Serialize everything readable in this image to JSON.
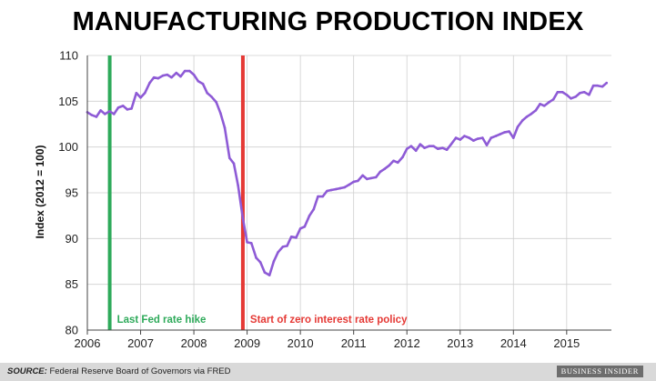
{
  "chart_data": {
    "type": "line",
    "title": "MANUFACTURING PRODUCTION INDEX",
    "ylabel": "Index (2012 = 100)",
    "xlabel": "",
    "ylim": [
      80,
      110
    ],
    "xlim": [
      2006.0,
      2015.84
    ],
    "yticks": [
      "80",
      "85",
      "90",
      "95",
      "100",
      "105",
      "110"
    ],
    "xticks": [
      "2006",
      "2007",
      "2008",
      "2009",
      "2010",
      "2011",
      "2012",
      "2013",
      "2014",
      "2015"
    ],
    "grid": true,
    "line_color": "#8e5bd6",
    "annotations": [
      {
        "label": "Last Fed rate hike",
        "x": 2006.42,
        "color": "#2eaa5a"
      },
      {
        "label": "Start of zero interest rate policy",
        "x": 2008.92,
        "color": "#e53935"
      }
    ],
    "series": [
      {
        "values": [
          [
            2006.0,
            103.8
          ],
          [
            2006.08,
            103.5
          ],
          [
            2006.17,
            103.3
          ],
          [
            2006.25,
            104.0
          ],
          [
            2006.33,
            103.6
          ],
          [
            2006.42,
            103.9
          ],
          [
            2006.5,
            103.6
          ],
          [
            2006.58,
            104.3
          ],
          [
            2006.67,
            104.5
          ],
          [
            2006.75,
            104.1
          ],
          [
            2006.83,
            104.2
          ],
          [
            2006.92,
            105.9
          ],
          [
            2007.0,
            105.4
          ],
          [
            2007.08,
            105.9
          ],
          [
            2007.17,
            107.0
          ],
          [
            2007.25,
            107.6
          ],
          [
            2007.33,
            107.5
          ],
          [
            2007.42,
            107.8
          ],
          [
            2007.5,
            107.9
          ],
          [
            2007.58,
            107.6
          ],
          [
            2007.67,
            108.1
          ],
          [
            2007.75,
            107.7
          ],
          [
            2007.83,
            108.3
          ],
          [
            2007.92,
            108.3
          ],
          [
            2008.0,
            107.9
          ],
          [
            2008.08,
            107.2
          ],
          [
            2008.17,
            106.9
          ],
          [
            2008.25,
            105.9
          ],
          [
            2008.33,
            105.5
          ],
          [
            2008.42,
            104.9
          ],
          [
            2008.5,
            103.7
          ],
          [
            2008.58,
            102.1
          ],
          [
            2008.67,
            98.8
          ],
          [
            2008.75,
            98.2
          ],
          [
            2008.83,
            95.8
          ],
          [
            2008.92,
            92.2
          ],
          [
            2009.0,
            89.6
          ],
          [
            2009.08,
            89.5
          ],
          [
            2009.17,
            87.9
          ],
          [
            2009.25,
            87.4
          ],
          [
            2009.33,
            86.3
          ],
          [
            2009.42,
            86.0
          ],
          [
            2009.5,
            87.5
          ],
          [
            2009.58,
            88.5
          ],
          [
            2009.67,
            89.1
          ],
          [
            2009.75,
            89.2
          ],
          [
            2009.83,
            90.2
          ],
          [
            2009.92,
            90.1
          ],
          [
            2010.0,
            91.1
          ],
          [
            2010.08,
            91.3
          ],
          [
            2010.17,
            92.5
          ],
          [
            2010.25,
            93.2
          ],
          [
            2010.33,
            94.6
          ],
          [
            2010.42,
            94.6
          ],
          [
            2010.5,
            95.2
          ],
          [
            2010.58,
            95.3
          ],
          [
            2010.67,
            95.4
          ],
          [
            2010.75,
            95.5
          ],
          [
            2010.83,
            95.6
          ],
          [
            2010.92,
            95.9
          ],
          [
            2011.0,
            96.2
          ],
          [
            2011.08,
            96.3
          ],
          [
            2011.17,
            96.9
          ],
          [
            2011.25,
            96.5
          ],
          [
            2011.33,
            96.6
          ],
          [
            2011.42,
            96.7
          ],
          [
            2011.5,
            97.3
          ],
          [
            2011.58,
            97.6
          ],
          [
            2011.67,
            98.0
          ],
          [
            2011.75,
            98.5
          ],
          [
            2011.83,
            98.3
          ],
          [
            2011.92,
            98.9
          ],
          [
            2012.0,
            99.8
          ],
          [
            2012.08,
            100.1
          ],
          [
            2012.17,
            99.6
          ],
          [
            2012.25,
            100.3
          ],
          [
            2012.33,
            99.9
          ],
          [
            2012.42,
            100.1
          ],
          [
            2012.5,
            100.1
          ],
          [
            2012.58,
            99.8
          ],
          [
            2012.67,
            99.9
          ],
          [
            2012.75,
            99.7
          ],
          [
            2012.83,
            100.3
          ],
          [
            2012.92,
            101.0
          ],
          [
            2013.0,
            100.8
          ],
          [
            2013.08,
            101.2
          ],
          [
            2013.17,
            101.0
          ],
          [
            2013.25,
            100.7
          ],
          [
            2013.33,
            100.9
          ],
          [
            2013.42,
            101.0
          ],
          [
            2013.5,
            100.2
          ],
          [
            2013.58,
            101.0
          ],
          [
            2013.67,
            101.2
          ],
          [
            2013.75,
            101.4
          ],
          [
            2013.83,
            101.6
          ],
          [
            2013.92,
            101.7
          ],
          [
            2014.0,
            101.0
          ],
          [
            2014.08,
            102.2
          ],
          [
            2014.17,
            102.9
          ],
          [
            2014.25,
            103.3
          ],
          [
            2014.33,
            103.6
          ],
          [
            2014.42,
            104.0
          ],
          [
            2014.5,
            104.7
          ],
          [
            2014.58,
            104.5
          ],
          [
            2014.67,
            104.9
          ],
          [
            2014.75,
            105.2
          ],
          [
            2014.83,
            106.0
          ],
          [
            2014.92,
            106.0
          ],
          [
            2015.0,
            105.7
          ],
          [
            2015.08,
            105.3
          ],
          [
            2015.17,
            105.5
          ],
          [
            2015.25,
            105.9
          ],
          [
            2015.33,
            106.0
          ],
          [
            2015.42,
            105.7
          ],
          [
            2015.5,
            106.7
          ],
          [
            2015.58,
            106.7
          ],
          [
            2015.67,
            106.6
          ],
          [
            2015.75,
            107.0
          ]
        ]
      }
    ]
  },
  "footer": {
    "source_label": "SOURCE:",
    "source_text": "Federal Reserve Board of Governors via FRED",
    "brand": "BUSINESS INSIDER"
  }
}
